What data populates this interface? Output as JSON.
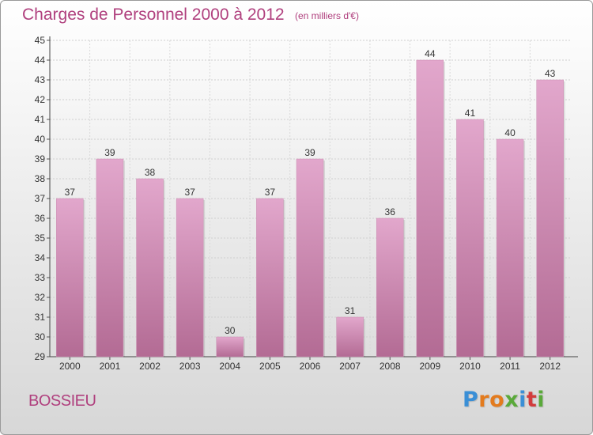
{
  "header": {
    "title": "Charges de Personnel 2000 à 2012",
    "subtitle": "(en milliers d'€)"
  },
  "footer": {
    "commune": "BOSSIEU",
    "logo_letters": [
      "P",
      "r",
      "o",
      "x",
      "i",
      "t",
      "i"
    ],
    "logo_colors": [
      "#3a8fd6",
      "#e37b1e",
      "#e37b1e",
      "#5aa93a",
      "#3a8fd6",
      "#d23c3c",
      "#5aa93a"
    ]
  },
  "colors": {
    "bar_top": "#e2a7cc",
    "bar_bottom": "#b36b94",
    "accent": "#b0407e"
  },
  "chart_data": {
    "type": "bar",
    "categories": [
      "2000",
      "2001",
      "2002",
      "2003",
      "2004",
      "2005",
      "2006",
      "2007",
      "2008",
      "2009",
      "2010",
      "2011",
      "2012"
    ],
    "values": [
      37,
      39,
      38,
      37,
      30,
      37,
      39,
      31,
      36,
      44,
      41,
      40,
      43
    ],
    "ylim": [
      29,
      45
    ],
    "yticks": [
      29,
      30,
      31,
      32,
      33,
      34,
      35,
      36,
      37,
      38,
      39,
      40,
      41,
      42,
      43,
      44,
      45
    ],
    "grid": true,
    "xlabel": "",
    "ylabel": ""
  }
}
